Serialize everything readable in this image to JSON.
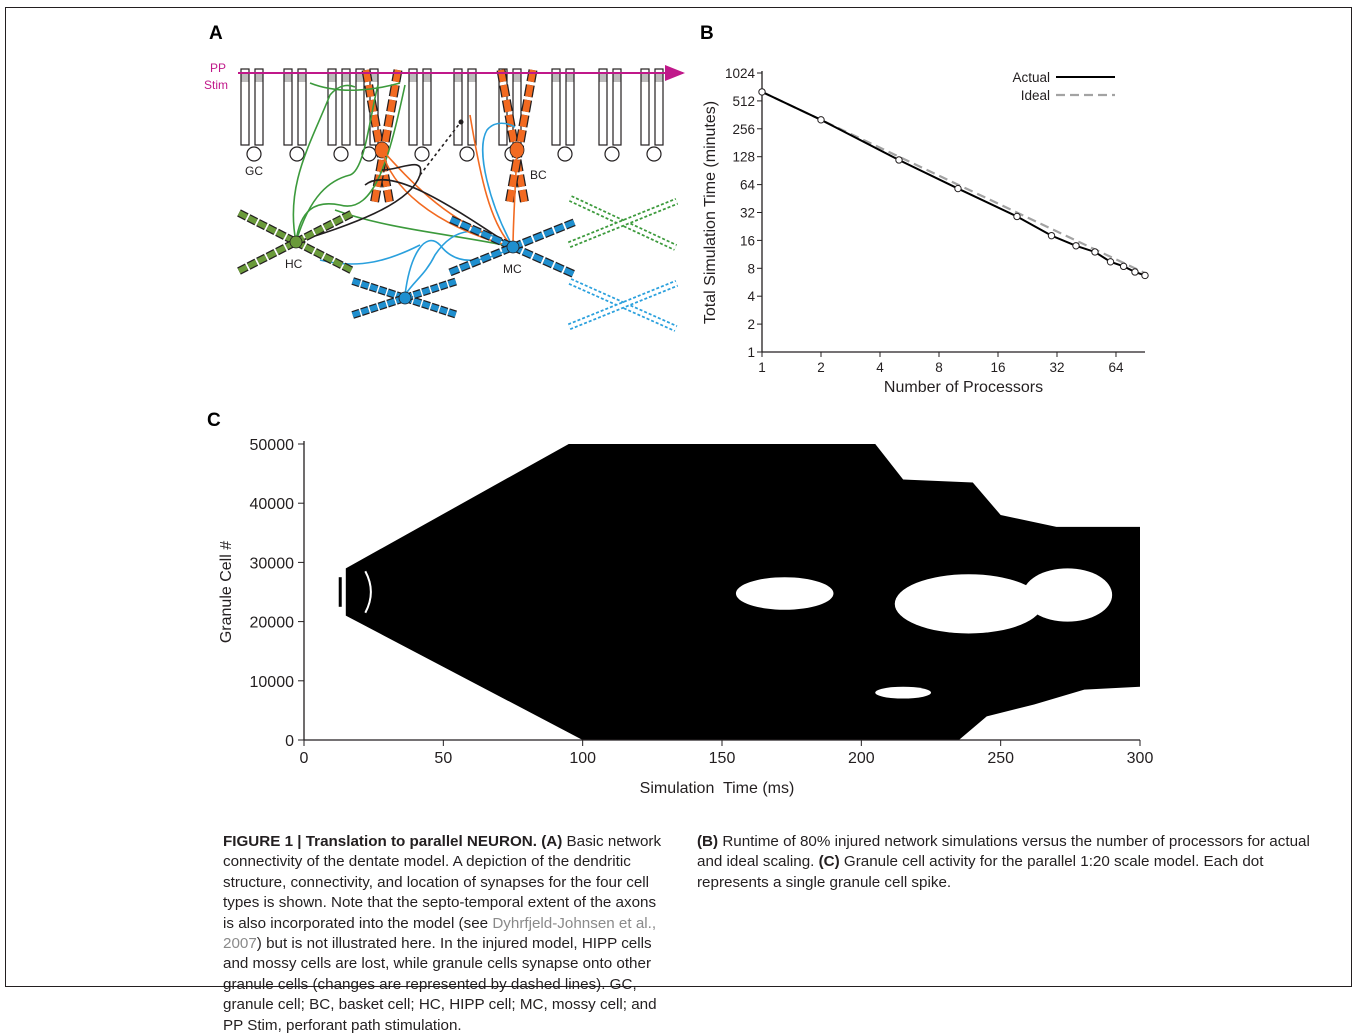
{
  "panel_labels": {
    "a": "A",
    "b": "B",
    "c": "C"
  },
  "panel_a": {
    "labels": {
      "pp": "PP",
      "stim": "Stim",
      "gc": "GC",
      "bc": "BC",
      "hc": "HC",
      "mc": "MC"
    },
    "colors": {
      "pp": "#c0188a",
      "bc": "#f26a21",
      "hc": "#6a9a3a",
      "mc": "#1f8fcf",
      "axon_hc": "#3c9a3c",
      "axon_mc": "#2aa0dd",
      "axon_black": "#231f20"
    }
  },
  "chart_data": [
    {
      "type": "line",
      "panel": "B",
      "xlabel": "Number of Processors",
      "ylabel": "Total Simulation Time (minutes)",
      "x_scale": "log2",
      "y_scale": "log2",
      "xlim": [
        1,
        90
      ],
      "ylim": [
        1,
        1024
      ],
      "x_ticks": [
        1,
        2,
        4,
        8,
        16,
        32,
        64
      ],
      "y_ticks": [
        1,
        2,
        4,
        8,
        16,
        32,
        64,
        128,
        256,
        512,
        1024
      ],
      "legend_position": "top-right",
      "series": [
        {
          "name": "Actual",
          "style": "solid",
          "color": "#000000",
          "x": [
            1,
            2,
            5,
            10,
            20,
            30,
            40,
            50,
            60,
            70,
            80,
            90
          ],
          "y": [
            640,
            320,
            118,
            58,
            29,
            18,
            14,
            12,
            9.4,
            8.4,
            7.3,
            6.7
          ]
        },
        {
          "name": "Ideal",
          "style": "dashed",
          "color": "#a3a3a3",
          "x": [
            1,
            90
          ],
          "y": [
            640,
            7.1
          ]
        }
      ]
    },
    {
      "type": "scatter",
      "panel": "C",
      "xlabel": "Simulation  Time (ms)",
      "ylabel": "Granule Cell #",
      "xlim": [
        0,
        300
      ],
      "ylim": [
        0,
        50000
      ],
      "x_ticks": [
        0,
        50,
        100,
        150,
        200,
        250,
        300
      ],
      "y_ticks": [
        0,
        10000,
        20000,
        30000,
        40000,
        50000
      ],
      "stimulus": {
        "time": 13,
        "cell_range": [
          22500,
          27500
        ]
      },
      "activity_shape": {
        "wavefront_start": {
          "time": 15,
          "cell": 25000
        },
        "front_reaches_edges_at": [
          {
            "time": 95,
            "cell": 50000
          },
          {
            "time": 100,
            "cell": 0
          }
        ],
        "quiet_regions": [
          {
            "label": "left",
            "time": [
              155,
              190
            ],
            "cell": [
              22000,
              27500
            ]
          },
          {
            "label": "center",
            "time": [
              212,
              265
            ],
            "cell": [
              18000,
              28000
            ]
          },
          {
            "label": "right",
            "time": [
              258,
              290
            ],
            "cell": [
              20000,
              29000
            ]
          },
          {
            "label": "lower",
            "time": [
              205,
              225
            ],
            "cell": [
              7000,
              9000
            ]
          }
        ]
      }
    }
  ],
  "caption": {
    "heading": "FIGURE 1 | Translation to parallel NEURON.",
    "part_a_label": "(A)",
    "part_a_text_1": " Basic network connectivity of the dentate model. A depiction of the dendritic structure, connectivity, and location of synapses for the four cell types is shown. Note that the septo-temporal extent of the axons is also incorporated into the model (see ",
    "reference": "Dyhrfjeld-Johnsen et al., 2007",
    "part_a_text_2": ") but is not illustrated here. In the injured model, HIPP cells and mossy cells are lost, while granule cells synapse onto other granule cells (changes are represented by dashed lines). GC, granule cell; BC, basket cell; HC, HIPP cell; MC, mossy cell; and PP Stim, perforant path stimulation. ",
    "part_b_label": "(B)",
    "part_b_text": " Runtime of 80% injured network simulations versus the number of processors for actual and ideal scaling. ",
    "part_c_label": "(C)",
    "part_c_text": " Granule cell activity for the parallel 1:20 scale model. Each dot represents a single granule cell spike."
  }
}
